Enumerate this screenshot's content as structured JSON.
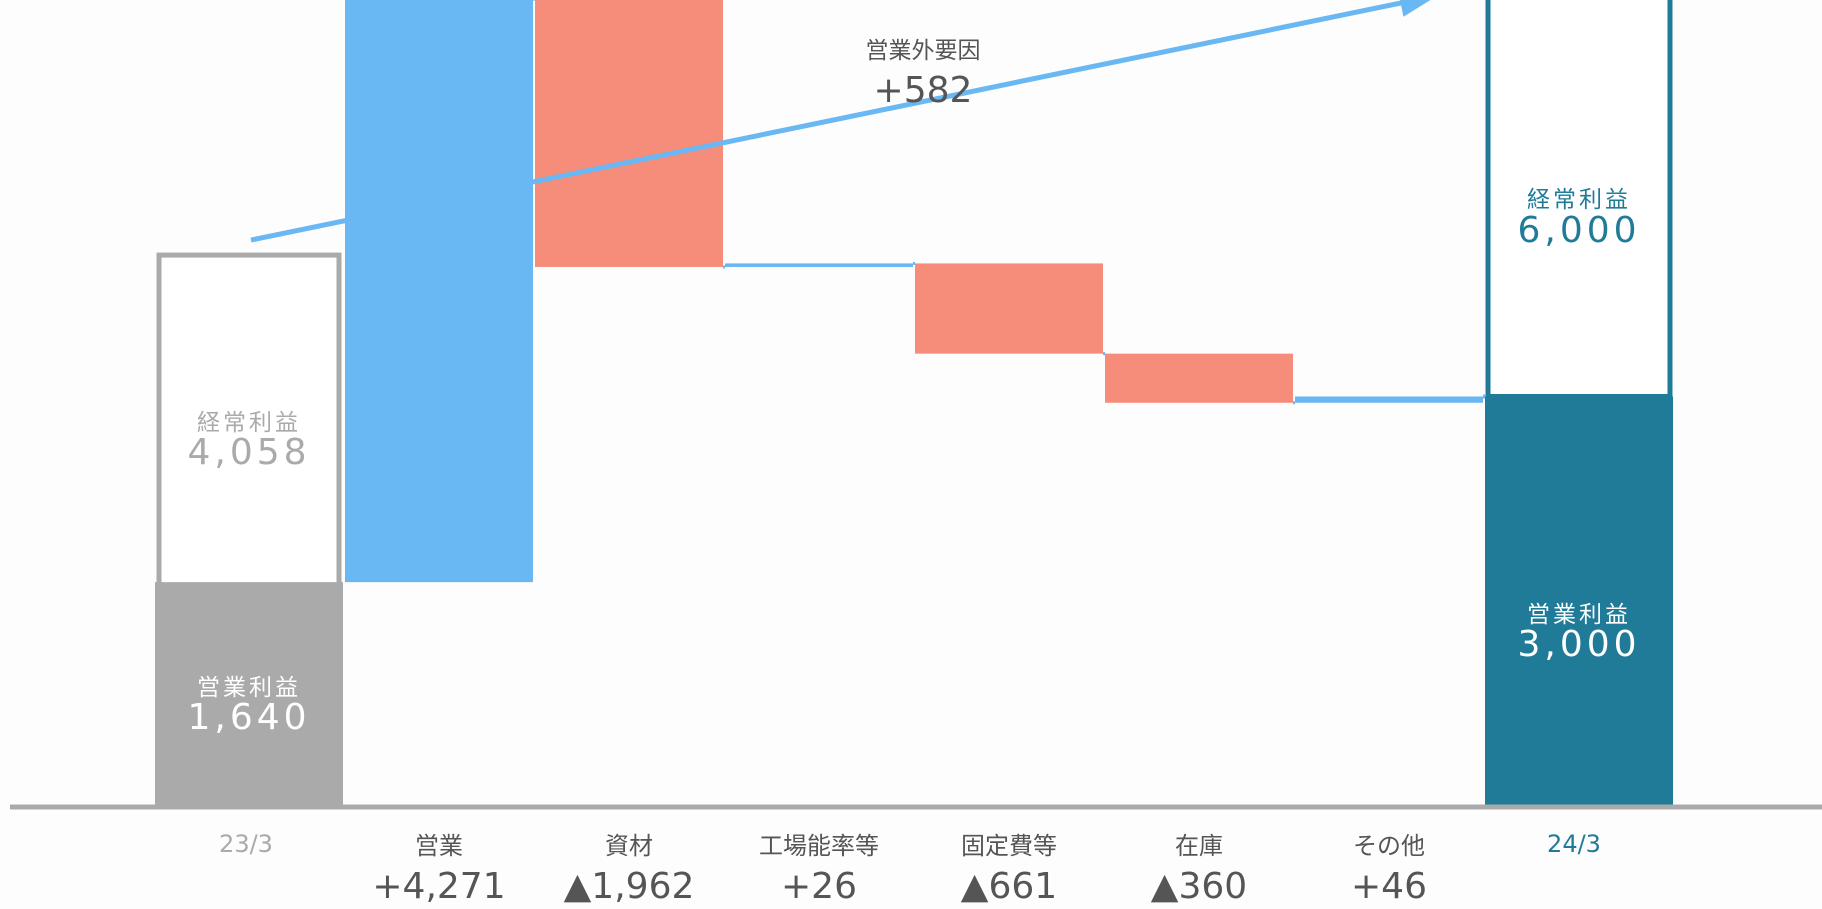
{
  "chart_data": {
    "type": "waterfall",
    "unit_hint": "",
    "start": {
      "label": "23/3",
      "operating_profit_label": "営業利益",
      "operating_profit": 1640,
      "operating_profit_text": "1,640",
      "ordinary_profit_label": "経常利益",
      "ordinary_profit": 4058,
      "ordinary_profit_text": "4,058"
    },
    "steps": [
      {
        "label": "営業",
        "value": 4271,
        "display": "+4,271",
        "sign": "increase"
      },
      {
        "label": "資材",
        "value": -1962,
        "display": "▲1,962",
        "sign": "decrease"
      },
      {
        "label": "工場能率等",
        "value": 26,
        "display": "+26",
        "sign": "increase"
      },
      {
        "label": "固定費等",
        "value": -661,
        "display": "▲661",
        "sign": "decrease"
      },
      {
        "label": "在庫",
        "value": -360,
        "display": "▲360",
        "sign": "decrease"
      },
      {
        "label": "その他",
        "value": 46,
        "display": "+46",
        "sign": "increase"
      }
    ],
    "end": {
      "label": "24/3",
      "operating_profit_label": "営業利益",
      "operating_profit": 3000,
      "operating_profit_text": "3,000",
      "ordinary_profit_label": "経常利益",
      "ordinary_profit": 6000,
      "ordinary_profit_text": "6,000"
    },
    "annotation": {
      "label": "営業外要因",
      "value": 582,
      "display": "+582"
    },
    "colors": {
      "increase": "#6ab8f3",
      "decrease": "#f68c7a",
      "start": "#aaaaaa",
      "end": "#207b98",
      "arrow": "#6ab8f3",
      "axis": "#aaaaaa"
    }
  }
}
